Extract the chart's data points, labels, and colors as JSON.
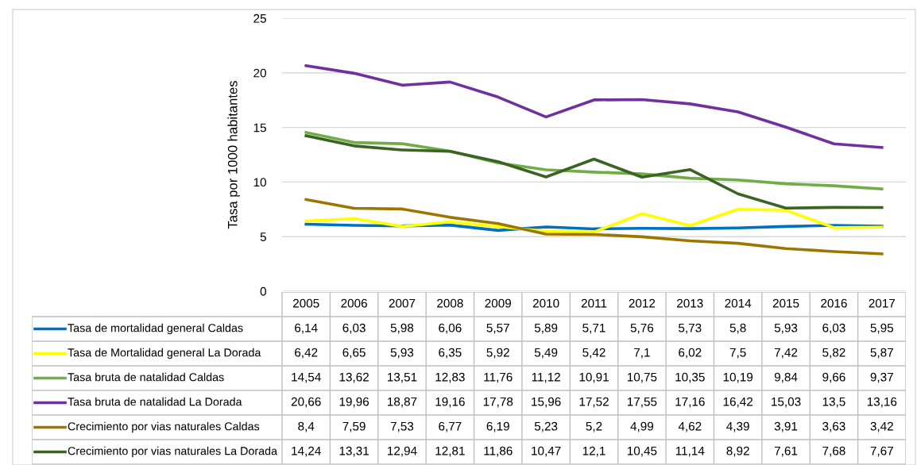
{
  "chart_data": {
    "type": "line",
    "ylabel": "Tasa por 1000 habitantes",
    "categories": [
      "2005",
      "2006",
      "2007",
      "2008",
      "2009",
      "2010",
      "2011",
      "2012",
      "2013",
      "2014",
      "2015",
      "2016",
      "2017"
    ],
    "ylim": [
      0,
      25
    ],
    "yticks": [
      0,
      5,
      10,
      15,
      20,
      25
    ],
    "grid": "y",
    "legend": "bottom",
    "tick_labels": "y",
    "series": [
      {
        "name": "Tasa de mortalidad general Caldas",
        "color": "#0070c0",
        "values": [
          6.14,
          6.03,
          5.98,
          6.06,
          5.57,
          5.89,
          5.71,
          5.76,
          5.73,
          5.8,
          5.93,
          6.03,
          5.95
        ],
        "value_labels": [
          "6,14",
          "6,03",
          "5,98",
          "6,06",
          "5,57",
          "5,89",
          "5,71",
          "5,76",
          "5,73",
          "5,8",
          "5,93",
          "6,03",
          "5,95"
        ]
      },
      {
        "name": "Tasa de Mortalidad general La Dorada",
        "color": "#ffff00",
        "values": [
          6.42,
          6.65,
          5.93,
          6.35,
          5.92,
          5.49,
          5.42,
          7.1,
          6.02,
          7.5,
          7.42,
          5.82,
          5.87
        ],
        "value_labels": [
          "6,42",
          "6,65",
          "5,93",
          "6,35",
          "5,92",
          "5,49",
          "5,42",
          "7,1",
          "6,02",
          "7,5",
          "7,42",
          "5,82",
          "5,87"
        ]
      },
      {
        "name": "Tasa bruta de natalidad Caldas",
        "color": "#70ad47",
        "values": [
          14.54,
          13.62,
          13.51,
          12.83,
          11.76,
          11.12,
          10.91,
          10.75,
          10.35,
          10.19,
          9.84,
          9.66,
          9.37
        ],
        "value_labels": [
          "14,54",
          "13,62",
          "13,51",
          "12,83",
          "11,76",
          "11,12",
          "10,91",
          "10,75",
          "10,35",
          "10,19",
          "9,84",
          "9,66",
          "9,37"
        ]
      },
      {
        "name": "Tasa bruta de natalidad La Dorada",
        "color": "#7030a0",
        "values": [
          20.66,
          19.96,
          18.87,
          19.16,
          17.78,
          15.96,
          17.52,
          17.55,
          17.16,
          16.42,
          15.03,
          13.5,
          13.16
        ],
        "value_labels": [
          "20,66",
          "19,96",
          "18,87",
          "19,16",
          "17,78",
          "15,96",
          "17,52",
          "17,55",
          "17,16",
          "16,42",
          "15,03",
          "13,5",
          "13,16"
        ]
      },
      {
        "name": "Crecimiento por vias naturales Caldas",
        "color": "#9c7700",
        "values": [
          8.4,
          7.59,
          7.53,
          6.77,
          6.19,
          5.23,
          5.2,
          4.99,
          4.62,
          4.39,
          3.91,
          3.63,
          3.42
        ],
        "value_labels": [
          "8,4",
          "7,59",
          "7,53",
          "6,77",
          "6,19",
          "5,23",
          "5,2",
          "4,99",
          "4,62",
          "4,39",
          "3,91",
          "3,63",
          "3,42"
        ]
      },
      {
        "name": "Crecimiento por vias naturales La Dorada",
        "color": "#3b6323",
        "values": [
          14.24,
          13.31,
          12.94,
          12.81,
          11.86,
          10.47,
          12.1,
          10.45,
          11.14,
          8.92,
          7.61,
          7.68,
          7.67
        ],
        "value_labels": [
          "14,24",
          "13,31",
          "12,94",
          "12,81",
          "11,86",
          "10,47",
          "12,1",
          "10,45",
          "11,14",
          "8,92",
          "7,61",
          "7,68",
          "7,67"
        ]
      }
    ]
  }
}
